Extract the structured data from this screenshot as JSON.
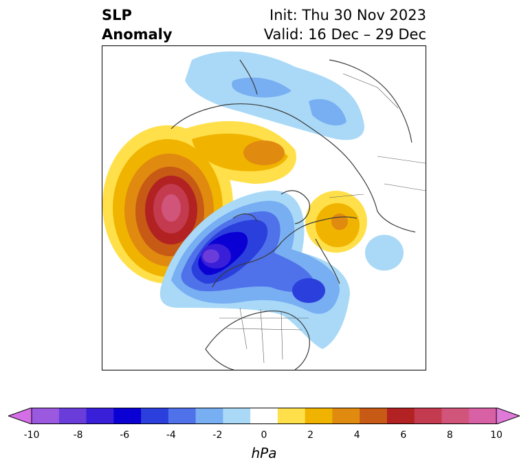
{
  "title": {
    "left_line1": "SLP",
    "left_line2": "Anomaly",
    "right_line1": "Init: Thu 30 Nov 2023",
    "right_line2": "Valid: 16 Dec – 29 Dec"
  },
  "colorbar": {
    "unit": "hPa",
    "ticks": [
      "-10",
      "-8",
      "-6",
      "-4",
      "-2",
      "0",
      "2",
      "4",
      "6",
      "8",
      "10"
    ],
    "colors": [
      "#d46fe8",
      "#9b59e0",
      "#6a3ddb",
      "#3a1fd8",
      "#0a00d4",
      "#2a3fdc",
      "#4f72ea",
      "#78aef2",
      "#a9d9f7",
      "#ffffff",
      "#ffe04a",
      "#f0b400",
      "#e08a10",
      "#c75a14",
      "#b22222",
      "#c43a4e",
      "#d1547a",
      "#d861a6",
      "#e07ad8"
    ]
  },
  "map": {
    "colors": {
      "pos_light": "#ffe04a",
      "pos_mid": "#f0b400",
      "pos_orange": "#e08a10",
      "pos_burnt": "#c75a14",
      "pos_red": "#b22222",
      "pos_rose": "#c43a4e",
      "pos_pink": "#d1547a",
      "neg_light": "#a9d9f7",
      "neg_sky": "#78aef2",
      "neg_mid": "#4f72ea",
      "neg_blue": "#2a3fdc",
      "neg_deep": "#0a00d4",
      "neg_violet": "#3a1fd8",
      "neg_purple": "#6a3ddb",
      "coast": "#3a3a3a"
    }
  }
}
